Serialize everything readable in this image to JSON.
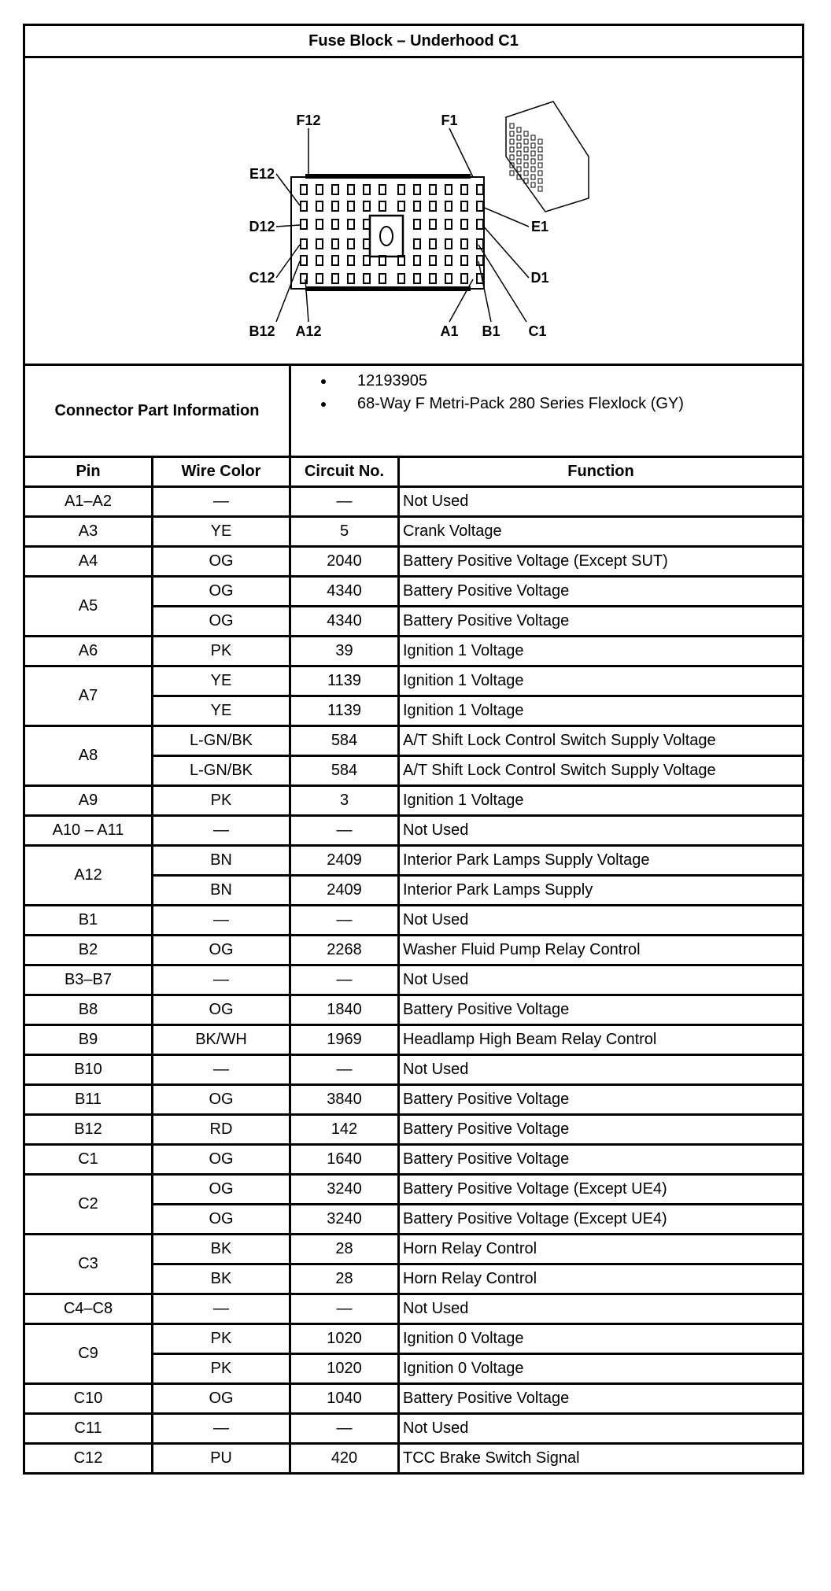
{
  "title": "Fuse Block – Underhood C1",
  "diagram": {
    "labels": {
      "F12": "F12",
      "F1": "F1",
      "E12": "E12",
      "E1": "E1",
      "D12": "D12",
      "D1": "D1",
      "C12": "C12",
      "C1": "C1",
      "B12": "B12",
      "B1": "B1",
      "A12": "A12",
      "A1": "A1"
    }
  },
  "connector_info": {
    "label": "Connector Part Information",
    "items": [
      "12193905",
      "68-Way F Metri-Pack 280 Series Flexlock (GY)"
    ]
  },
  "columns": [
    "Pin",
    "Wire Color",
    "Circuit No.",
    "Function"
  ],
  "rows": [
    {
      "pin": "A1–A2",
      "wires": [
        [
          "—",
          "—",
          "Not Used"
        ]
      ]
    },
    {
      "pin": "A3",
      "wires": [
        [
          "YE",
          "5",
          "Crank Voltage"
        ]
      ]
    },
    {
      "pin": "A4",
      "wires": [
        [
          "OG",
          "2040",
          "Battery Positive Voltage (Except SUT)"
        ]
      ]
    },
    {
      "pin": "A5",
      "wires": [
        [
          "OG",
          "4340",
          "Battery Positive Voltage"
        ],
        [
          "OG",
          "4340",
          "Battery Positive Voltage"
        ]
      ]
    },
    {
      "pin": "A6",
      "wires": [
        [
          "PK",
          "39",
          "Ignition 1 Voltage"
        ]
      ]
    },
    {
      "pin": "A7",
      "wires": [
        [
          "YE",
          "1139",
          "Ignition 1 Voltage"
        ],
        [
          "YE",
          "1139",
          "Ignition 1 Voltage"
        ]
      ]
    },
    {
      "pin": "A8",
      "wires": [
        [
          "L-GN/BK",
          "584",
          "A/T Shift Lock Control Switch Supply Voltage"
        ],
        [
          "L-GN/BK",
          "584",
          "A/T Shift Lock Control Switch Supply Voltage"
        ]
      ]
    },
    {
      "pin": "A9",
      "wires": [
        [
          "PK",
          "3",
          "Ignition 1 Voltage"
        ]
      ]
    },
    {
      "pin": "A10 – A11",
      "wires": [
        [
          "—",
          "—",
          "Not Used"
        ]
      ]
    },
    {
      "pin": "A12",
      "wires": [
        [
          "BN",
          "2409",
          "Interior Park Lamps Supply Voltage"
        ],
        [
          "BN",
          "2409",
          "Interior Park Lamps Supply"
        ]
      ]
    },
    {
      "pin": "B1",
      "wires": [
        [
          "—",
          "—",
          "Not Used"
        ]
      ]
    },
    {
      "pin": "B2",
      "wires": [
        [
          "OG",
          "2268",
          "Washer Fluid Pump Relay Control"
        ]
      ]
    },
    {
      "pin": "B3–B7",
      "wires": [
        [
          "—",
          "—",
          "Not Used"
        ]
      ]
    },
    {
      "pin": "B8",
      "wires": [
        [
          "OG",
          "1840",
          "Battery Positive Voltage"
        ]
      ]
    },
    {
      "pin": "B9",
      "wires": [
        [
          "BK/WH",
          "1969",
          "Headlamp High Beam Relay Control"
        ]
      ]
    },
    {
      "pin": "B10",
      "wires": [
        [
          "—",
          "—",
          "Not Used"
        ]
      ]
    },
    {
      "pin": "B11",
      "wires": [
        [
          "OG",
          "3840",
          "Battery Positive Voltage"
        ]
      ]
    },
    {
      "pin": "B12",
      "wires": [
        [
          "RD",
          "142",
          "Battery Positive Voltage"
        ]
      ]
    },
    {
      "pin": "C1",
      "wires": [
        [
          "OG",
          "1640",
          "Battery Positive Voltage"
        ]
      ]
    },
    {
      "pin": "C2",
      "wires": [
        [
          "OG",
          "3240",
          "Battery Positive Voltage (Except UE4)"
        ],
        [
          "OG",
          "3240",
          "Battery Positive Voltage (Except UE4)"
        ]
      ]
    },
    {
      "pin": "C3",
      "wires": [
        [
          "BK",
          "28",
          "Horn Relay Control"
        ],
        [
          "BK",
          "28",
          "Horn Relay Control"
        ]
      ]
    },
    {
      "pin": "C4–C8",
      "wires": [
        [
          "—",
          "—",
          "Not Used"
        ]
      ]
    },
    {
      "pin": "C9",
      "wires": [
        [
          "PK",
          "1020",
          "Ignition 0 Voltage"
        ],
        [
          "PK",
          "1020",
          "Ignition 0 Voltage"
        ]
      ]
    },
    {
      "pin": "C10",
      "wires": [
        [
          "OG",
          "1040",
          "Battery Positive Voltage"
        ]
      ]
    },
    {
      "pin": "C11",
      "wires": [
        [
          "—",
          "—",
          "Not Used"
        ]
      ]
    },
    {
      "pin": "C12",
      "wires": [
        [
          "PU",
          "420",
          "TCC Brake Switch Signal"
        ]
      ]
    }
  ]
}
